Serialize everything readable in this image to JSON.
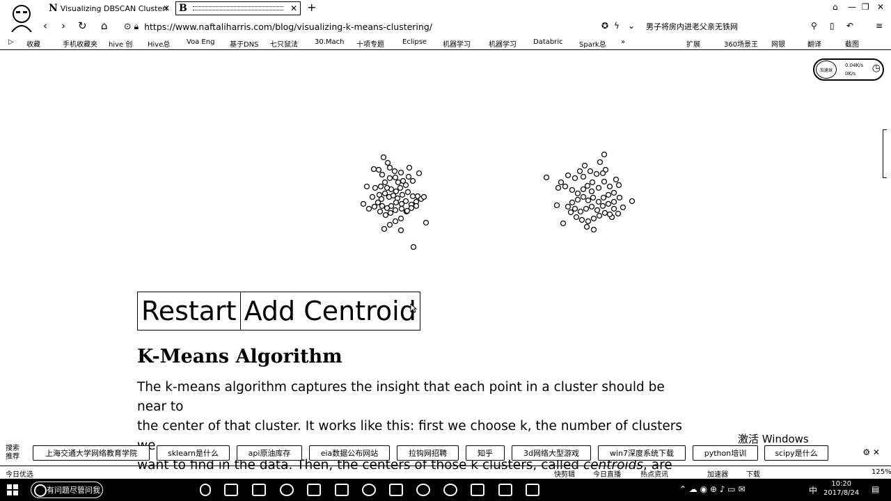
{
  "browser": {
    "tabs": [
      {
        "favicon": "N",
        "title": "Visualizing DBSCAN Clusteri"
      },
      {
        "favicon": "B",
        "title": ""
      }
    ],
    "url": "https://www.naftaliharris.com/blog/visualizing-k-means-clustering/",
    "news_headline": "男子将房内进老父亲无铁网",
    "bookmarks": [
      "收藏",
      "手机收藏夹",
      "hive 创",
      "Hive总",
      "Voa Eng",
      "基于DNS",
      "七只鼠法",
      "30.Mach",
      "十项专题",
      "Eclipse",
      "机器学习",
      "机器学习",
      "Databric",
      "Spark总"
    ],
    "right_tools": [
      "扩展",
      "360场景王",
      "网银",
      "翻译",
      "截图"
    ]
  },
  "net_monitor": {
    "label": "加速球",
    "up": "0.04K/s",
    "down": "0K/s"
  },
  "chart_data": {
    "type": "scatter",
    "title": "",
    "xlabel": "",
    "ylabel": "",
    "series": [
      {
        "points": [
          [
            551,
            226
          ],
          [
            557,
            234
          ],
          [
            544,
            244
          ],
          [
            560,
            241
          ],
          [
            567,
            246
          ],
          [
            576,
            248
          ],
          [
            588,
            241
          ],
          [
            602,
            249
          ],
          [
            537,
            243
          ],
          [
            549,
            251
          ],
          [
            553,
            262
          ],
          [
            560,
            256
          ],
          [
            568,
            255
          ],
          [
            572,
            262
          ],
          [
            579,
            260
          ],
          [
            587,
            254
          ],
          [
            593,
            260
          ],
          [
            583,
            266
          ],
          [
            575,
            270
          ],
          [
            569,
            275
          ],
          [
            562,
            272
          ],
          [
            556,
            270
          ],
          [
            547,
            268
          ],
          [
            539,
            270
          ],
          [
            527,
            268
          ],
          [
            535,
            283
          ],
          [
            545,
            280
          ],
          [
            553,
            278
          ],
          [
            559,
            283
          ],
          [
            565,
            281
          ],
          [
            571,
            285
          ],
          [
            578,
            280
          ],
          [
            586,
            276
          ],
          [
            593,
            282
          ],
          [
            600,
            282
          ],
          [
            605,
            286
          ],
          [
            598,
            290
          ],
          [
            591,
            294
          ],
          [
            583,
            289
          ],
          [
            577,
            293
          ],
          [
            569,
            291
          ],
          [
            562,
            296
          ],
          [
            556,
            299
          ],
          [
            549,
            296
          ],
          [
            543,
            291
          ],
          [
            538,
            297
          ],
          [
            522,
            293
          ],
          [
            530,
            300
          ],
          [
            546,
            304
          ],
          [
            554,
            309
          ],
          [
            561,
            306
          ],
          [
            568,
            302
          ],
          [
            577,
            300
          ],
          [
            584,
            304
          ],
          [
            591,
            299
          ],
          [
            598,
            296
          ],
          [
            609,
            283
          ],
          [
            576,
            314
          ],
          [
            568,
            318
          ],
          [
            560,
            323
          ],
          [
            552,
            329
          ],
          [
            576,
            331
          ],
          [
            612,
            320
          ],
          [
            594,
            355
          ],
          [
            585,
            303
          ],
          [
            548,
            286
          ]
        ]
      },
      {
        "points": [
          [
            868,
            222
          ],
          [
            862,
            233
          ],
          [
            870,
            244
          ],
          [
            857,
            250
          ],
          [
            848,
            246
          ],
          [
            840,
            238
          ],
          [
            833,
            246
          ],
          [
            826,
            256
          ],
          [
            816,
            252
          ],
          [
            806,
            262
          ],
          [
            785,
            255
          ],
          [
            802,
            270
          ],
          [
            812,
            268
          ],
          [
            822,
            273
          ],
          [
            830,
            278
          ],
          [
            838,
            272
          ],
          [
            844,
            267
          ],
          [
            851,
            262
          ],
          [
            860,
            270
          ],
          [
            868,
            261
          ],
          [
            876,
            268
          ],
          [
            885,
            258
          ],
          [
            889,
            266
          ],
          [
            882,
            277
          ],
          [
            874,
            280
          ],
          [
            867,
            284
          ],
          [
            860,
            290
          ],
          [
            852,
            284
          ],
          [
            845,
            288
          ],
          [
            838,
            283
          ],
          [
            830,
            287
          ],
          [
            822,
            291
          ],
          [
            816,
            297
          ],
          [
            826,
            300
          ],
          [
            834,
            304
          ],
          [
            842,
            300
          ],
          [
            850,
            297
          ],
          [
            858,
            302
          ],
          [
            866,
            296
          ],
          [
            874,
            293
          ],
          [
            882,
            290
          ],
          [
            890,
            284
          ],
          [
            908,
            289
          ],
          [
            895,
            298
          ],
          [
            888,
            307
          ],
          [
            879,
            312
          ],
          [
            869,
            306
          ],
          [
            861,
            310
          ],
          [
            853,
            314
          ],
          [
            845,
            318
          ],
          [
            836,
            316
          ],
          [
            828,
            312
          ],
          [
            820,
            305
          ],
          [
            809,
            321
          ],
          [
            853,
            330
          ],
          [
            843,
            326
          ],
          [
            876,
            308
          ],
          [
            866,
            249
          ],
          [
            838,
            254
          ],
          [
            800,
            295
          ],
          [
            850,
            275
          ],
          [
            882,
            300
          ]
        ]
      }
    ]
  },
  "controls": {
    "restart": "Restart",
    "add_centroid": "Add Centroid"
  },
  "article": {
    "heading": "K-Means Algorithm",
    "p1_line1": "The k-means algorithm captures the insight that each point in a cluster should be near to",
    "p1_line2": "the center of that cluster. It works like this: first we choose k, the number of clusters we",
    "p1_line3a": "want to find in the data. Then, the centers of those k clusters, called",
    "p1_line3_em": "centroids",
    "p1_line3b": ", are"
  },
  "os_overlay": {
    "activate": "激活 Windows"
  },
  "search_suggest": {
    "label_top": "搜索",
    "label_bottom": "推荐",
    "chips": [
      "上海交通大学网络教育学院",
      "sklearn是什么",
      "api原油库存",
      "eia数据公布网站",
      "拉钩网招聘",
      "知乎",
      "3d网络大型游戏",
      "win7深度系统下载",
      "python培训",
      "scipy是什么"
    ]
  },
  "status": {
    "left": "今日优选",
    "items": [
      "快剪辑",
      "今日直播",
      "热点资讯",
      "加速器",
      "下载"
    ],
    "zoom": "125%"
  },
  "taskbar": {
    "search": "有问题尽管问我",
    "time": "10:20",
    "date": "2017/8/24",
    "ime": "中"
  }
}
